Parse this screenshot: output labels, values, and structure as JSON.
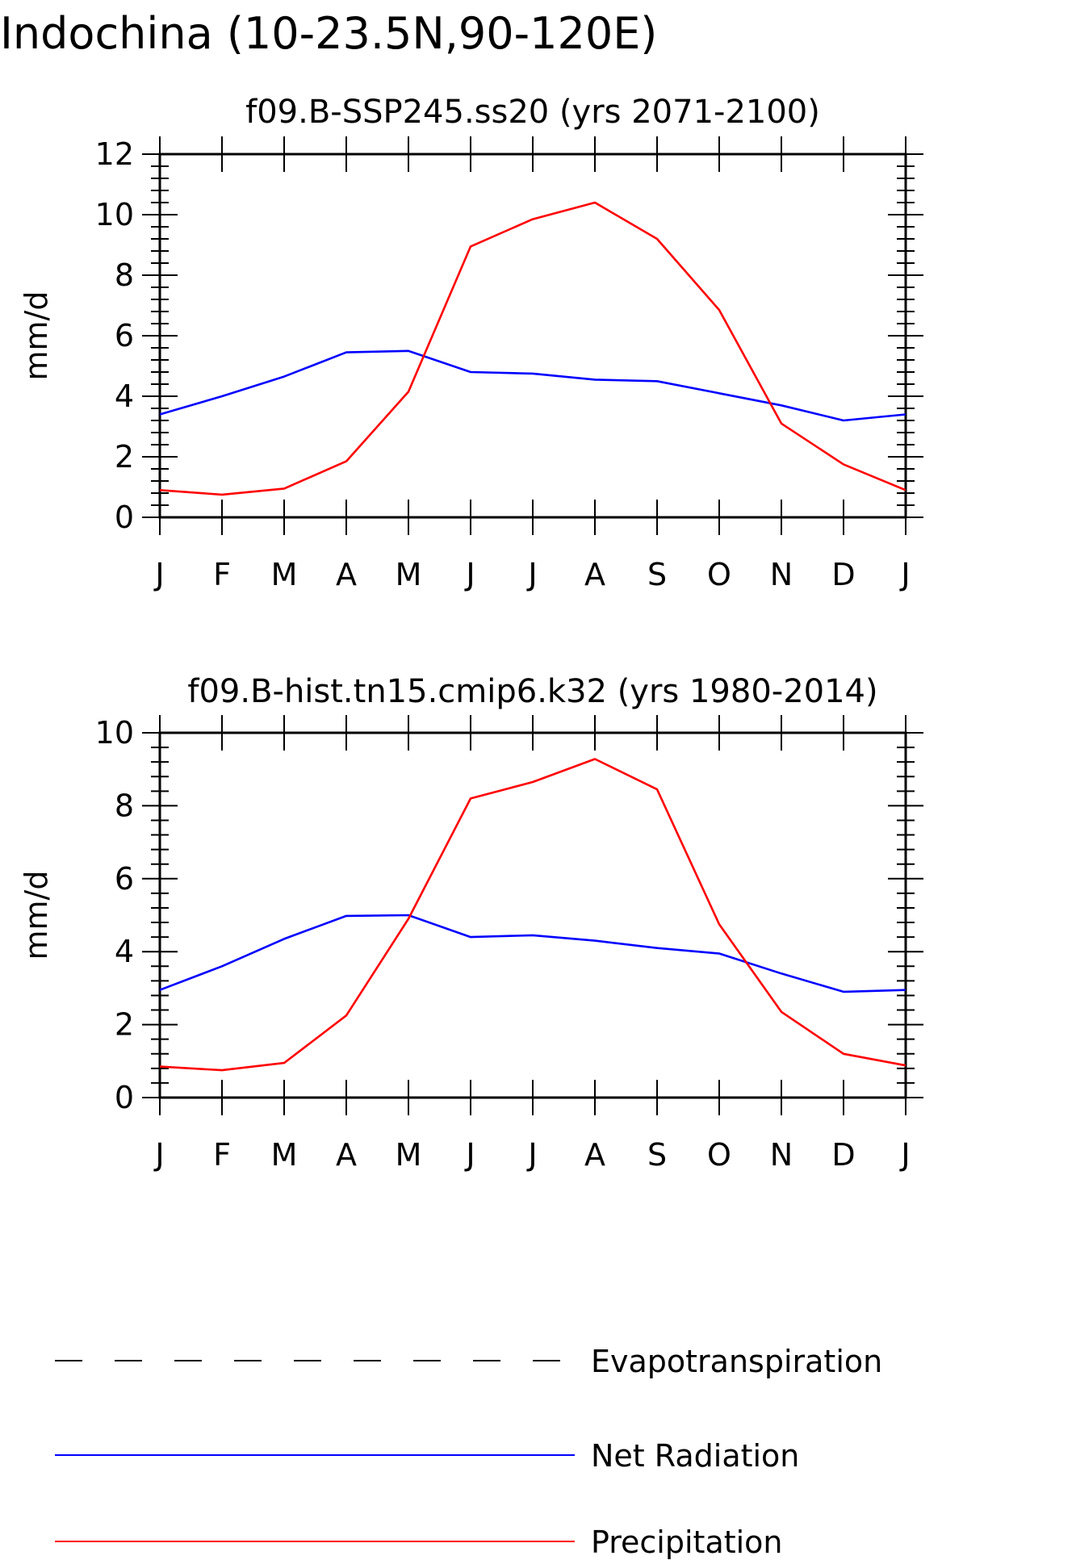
{
  "figure": {
    "title": "Indochina (10-23.5N,90-120E)"
  },
  "chart_data": [
    {
      "type": "line",
      "title": "f09.B-SSP245.ss20 (yrs 2071-2100)",
      "xlabel": "",
      "ylabel": "mm/d",
      "categories": [
        "J",
        "F",
        "M",
        "A",
        "M",
        "J",
        "J",
        "A",
        "S",
        "O",
        "N",
        "D",
        "J"
      ],
      "ylim": [
        0,
        12
      ],
      "yticks": [
        "0",
        "2",
        "4",
        "6",
        "8",
        "10",
        "12"
      ],
      "grid": false,
      "series": [
        {
          "name": "Net Radiation",
          "color": "#0000ff",
          "values": [
            3.4,
            4.0,
            4.65,
            5.45,
            5.5,
            4.8,
            4.75,
            4.55,
            4.5,
            4.1,
            3.7,
            3.2,
            3.4
          ]
        },
        {
          "name": "Precipitation",
          "color": "#ff0000",
          "values": [
            0.9,
            0.75,
            0.95,
            1.85,
            4.15,
            8.95,
            9.85,
            10.4,
            9.2,
            6.85,
            3.1,
            1.75,
            0.9
          ]
        }
      ]
    },
    {
      "type": "line",
      "title": "f09.B-hist.tn15.cmip6.k32 (yrs 1980-2014)",
      "xlabel": "",
      "ylabel": "mm/d",
      "categories": [
        "J",
        "F",
        "M",
        "A",
        "M",
        "J",
        "J",
        "A",
        "S",
        "O",
        "N",
        "D",
        "J"
      ],
      "ylim": [
        0,
        10
      ],
      "yticks": [
        "0",
        "2",
        "4",
        "6",
        "8",
        "10"
      ],
      "grid": false,
      "series": [
        {
          "name": "Net Radiation",
          "color": "#0000ff",
          "values": [
            2.95,
            3.6,
            4.35,
            4.98,
            5.0,
            4.4,
            4.45,
            4.3,
            4.1,
            3.95,
            3.4,
            2.9,
            2.95
          ]
        },
        {
          "name": "Precipitation",
          "color": "#ff0000",
          "values": [
            0.85,
            0.75,
            0.95,
            2.25,
            4.9,
            8.2,
            8.65,
            9.28,
            8.45,
            4.75,
            2.35,
            1.2,
            0.88
          ]
        }
      ]
    }
  ],
  "legend": {
    "placement": "bottom",
    "items": [
      {
        "label": "Evapotranspiration",
        "color": "#000000",
        "style": "dashed"
      },
      {
        "label": "Net Radiation",
        "color": "#0000ff",
        "style": "solid"
      },
      {
        "label": "Precipitation",
        "color": "#ff0000",
        "style": "solid"
      }
    ]
  }
}
